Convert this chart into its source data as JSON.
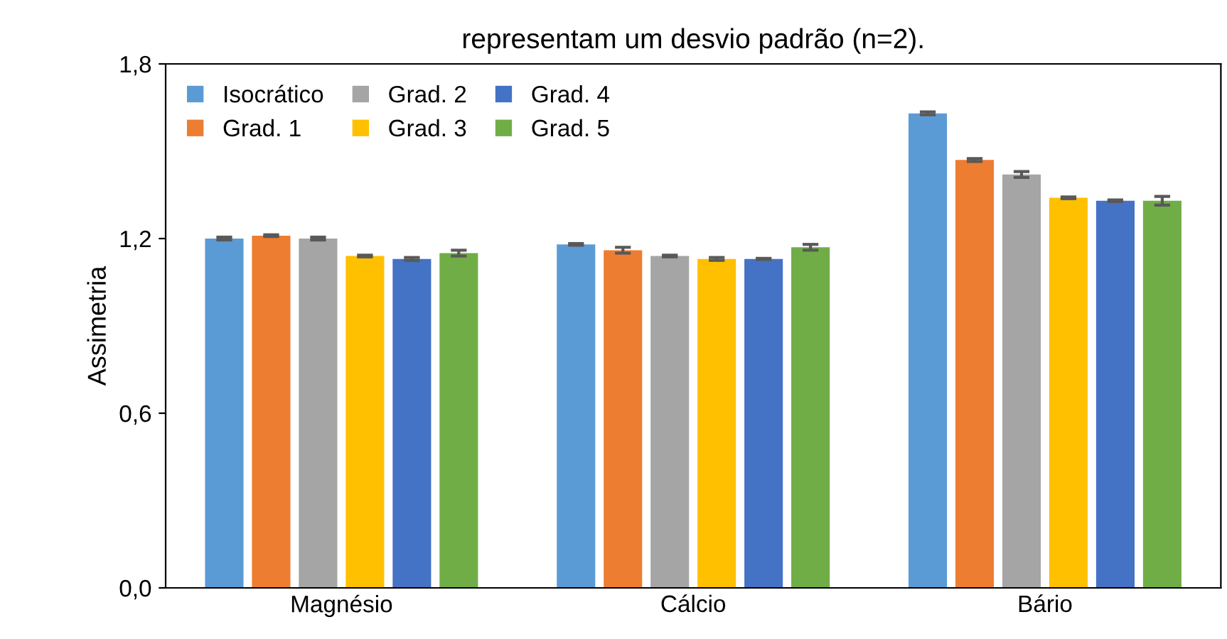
{
  "chart_data": {
    "type": "bar",
    "title": "representam um desvio padrão (n=2).",
    "ylabel": "Assimetria",
    "categories": [
      "Magnésio",
      "Cálcio",
      "Bário"
    ],
    "series": [
      {
        "name": "Isocrático",
        "color": "#5b9bd5",
        "values": [
          1.2,
          1.18,
          1.63
        ],
        "errors": [
          0.005,
          0.003,
          0.005
        ]
      },
      {
        "name": "Grad. 1",
        "color": "#ed7d31",
        "values": [
          1.21,
          1.16,
          1.47
        ],
        "errors": [
          0.003,
          0.01,
          0.005
        ]
      },
      {
        "name": "Grad. 2",
        "color": "#a5a5a5",
        "values": [
          1.2,
          1.14,
          1.42
        ],
        "errors": [
          0.005,
          0.003,
          0.01
        ]
      },
      {
        "name": "Grad. 3",
        "color": "#ffc000",
        "values": [
          1.14,
          1.13,
          1.34
        ],
        "errors": [
          0.003,
          0.005,
          0.003
        ]
      },
      {
        "name": "Grad. 4",
        "color": "#4472c4",
        "values": [
          1.13,
          1.13,
          1.33
        ],
        "errors": [
          0.005,
          0.002,
          0.003
        ]
      },
      {
        "name": "Grad. 5",
        "color": "#70ad47",
        "values": [
          1.15,
          1.17,
          1.33
        ],
        "errors": [
          0.01,
          0.01,
          0.015
        ]
      }
    ],
    "ylim": [
      0,
      1.8
    ],
    "yticks": [
      {
        "value": 0,
        "label": "0,0"
      },
      {
        "value": 0.6,
        "label": "0,6"
      },
      {
        "value": 1.2,
        "label": "1,2"
      },
      {
        "value": 1.8,
        "label": "1,8"
      }
    ],
    "grid": false,
    "legend": "top left"
  }
}
